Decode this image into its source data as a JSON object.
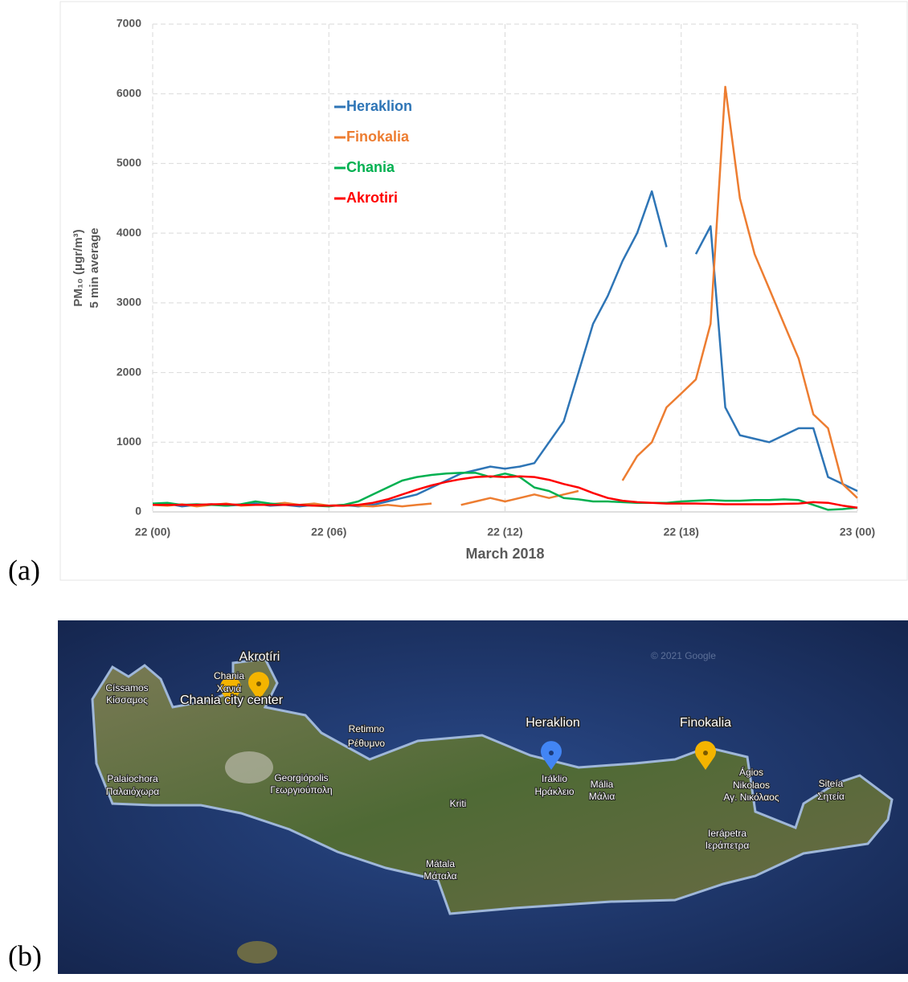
{
  "panel_labels": [
    "(a)",
    "(b)"
  ],
  "chart_data": {
    "type": "line",
    "xlabel": "March 2018",
    "ylabel": [
      "PM₁₀ (μgr/m³)",
      "5 min average"
    ],
    "x": [
      0,
      0.5,
      1,
      1.5,
      2,
      2.5,
      3,
      3.5,
      4,
      4.5,
      5,
      5.5,
      6,
      6.5,
      7,
      7.5,
      8,
      8.5,
      9,
      9.5,
      10,
      10.5,
      11,
      11.5,
      12,
      12.5,
      13,
      13.5,
      14,
      14.5,
      15,
      15.5,
      16,
      16.5,
      17,
      17.5,
      18,
      18.5,
      19,
      19.5,
      20,
      20.5,
      21,
      21.5,
      22,
      22.5,
      23,
      23.5,
      24
    ],
    "xlim": [
      0,
      24
    ],
    "xticks": [
      {
        "value": 0,
        "label": "22 (00)"
      },
      {
        "value": 6,
        "label": "22 (06)"
      },
      {
        "value": 12,
        "label": "22 (12)"
      },
      {
        "value": 18,
        "label": "22 (18)"
      },
      {
        "value": 24,
        "label": "23 (00)"
      }
    ],
    "ylim": [
      0,
      7000
    ],
    "yticks": [
      0,
      1000,
      2000,
      3000,
      4000,
      5000,
      6000,
      7000
    ],
    "grid": true,
    "series": [
      {
        "name": "Heraklion",
        "color": "#2e75b6",
        "values": [
          100,
          120,
          80,
          100,
          110,
          90,
          100,
          120,
          90,
          100,
          80,
          100,
          90,
          100,
          80,
          100,
          150,
          200,
          250,
          350,
          450,
          550,
          600,
          650,
          620,
          650,
          700,
          1000,
          1300,
          2000,
          2700,
          3100,
          3600,
          4000,
          4600,
          3800,
          null,
          3700,
          4100,
          1500,
          1100,
          1050,
          1000,
          1100,
          1200,
          1200,
          500,
          400,
          300
        ]
      },
      {
        "name": "Finokalia",
        "color": "#ed7d31",
        "values": [
          100,
          90,
          110,
          80,
          100,
          120,
          90,
          100,
          110,
          130,
          100,
          120,
          90,
          100,
          90,
          80,
          100,
          80,
          100,
          120,
          null,
          100,
          150,
          200,
          150,
          200,
          250,
          200,
          250,
          300,
          null,
          null,
          450,
          800,
          1000,
          1500,
          1700,
          1900,
          2700,
          6100,
          4500,
          3700,
          3200,
          2700,
          2200,
          1400,
          1200,
          400,
          200
        ]
      },
      {
        "name": "Chania",
        "color": "#00b050",
        "values": [
          120,
          130,
          100,
          110,
          100,
          90,
          110,
          150,
          120,
          100,
          100,
          90,
          80,
          100,
          150,
          250,
          350,
          450,
          500,
          530,
          550,
          560,
          560,
          500,
          550,
          500,
          350,
          300,
          200,
          180,
          150,
          150,
          140,
          130,
          130,
          130,
          150,
          160,
          170,
          160,
          160,
          170,
          170,
          180,
          170,
          100,
          30,
          40,
          60
        ]
      },
      {
        "name": "Akrotiri",
        "color": "#ff0000",
        "values": [
          100,
          100,
          100,
          100,
          110,
          110,
          100,
          100,
          100,
          100,
          100,
          90,
          90,
          90,
          100,
          130,
          180,
          250,
          320,
          380,
          430,
          470,
          500,
          510,
          500,
          510,
          500,
          460,
          400,
          350,
          270,
          200,
          160,
          140,
          130,
          120,
          120,
          120,
          115,
          110,
          110,
          110,
          110,
          115,
          120,
          140,
          130,
          90,
          60
        ]
      }
    ]
  },
  "map": {
    "attribution": "© 2021 Google",
    "places": [
      [
        "Akrotíri"
      ],
      [
        "Chania",
        "Χανιά"
      ],
      [
        "Chania city center"
      ],
      [
        "Císsamos",
        "Κίσσαμος"
      ],
      [
        "Retimno",
        "Ρέθυμνο"
      ],
      [
        "Palaiochora",
        "Παλαιόχωρα"
      ],
      [
        "Georgiópolis",
        "Γεωργιούπολη"
      ],
      [
        "Kriti"
      ],
      [
        "Heraklion"
      ],
      [
        "Iráklio",
        "Ηράκλειο"
      ],
      [
        "Mália",
        "Μάλια"
      ],
      [
        "Finokalia"
      ],
      [
        "Ágios",
        "Nikolaos",
        "Αγ. Νικόλαος"
      ],
      [
        "Siteía",
        "Σητεία"
      ],
      [
        "Mátala",
        "Μάταλα"
      ],
      [
        "Ierápetra",
        "Ιεράπετρα"
      ]
    ]
  }
}
